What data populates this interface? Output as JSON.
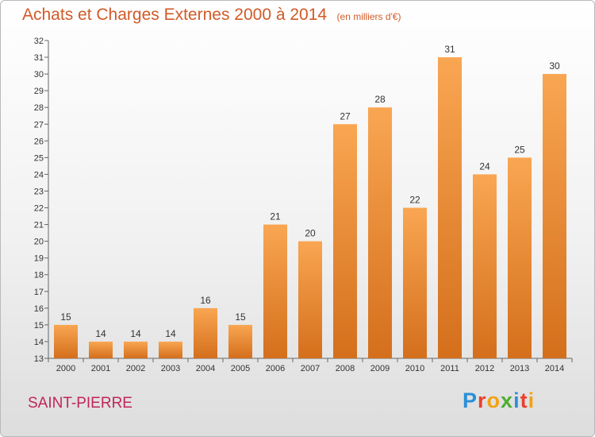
{
  "title": "Achats et Charges Externes 2000 à 2014",
  "unit": "(en milliers d'€)",
  "commune": "SAINT-PIERRE",
  "logo": [
    "P",
    "r",
    "o",
    "x",
    "i",
    "t",
    "i"
  ],
  "logo_colors": [
    "#2a8fd8",
    "#e8412d",
    "#f2a213",
    "#4caf2f",
    "#2a8fd8",
    "#e8412d",
    "#f2a213"
  ],
  "colors": {
    "bar_top": "#f9a652",
    "bar_bottom": "#d46f1c",
    "title": "#d15a28",
    "commune": "#c0255a"
  },
  "chart_data": {
    "type": "bar",
    "title": "Achats et Charges Externes 2000 à 2014",
    "subtitle": "(en milliers d'€)",
    "categories": [
      "2000",
      "2001",
      "2002",
      "2003",
      "2004",
      "2005",
      "2006",
      "2007",
      "2008",
      "2009",
      "2010",
      "2011",
      "2012",
      "2013",
      "2014"
    ],
    "values": [
      15,
      14,
      14,
      14,
      16,
      15,
      21,
      20,
      27,
      28,
      22,
      31,
      24,
      25,
      30
    ],
    "ylim": [
      13,
      32
    ],
    "yticks": [
      13,
      14,
      15,
      16,
      17,
      18,
      19,
      20,
      21,
      22,
      23,
      24,
      25,
      26,
      27,
      28,
      29,
      30,
      31,
      32
    ],
    "grid": false,
    "legend": "none"
  }
}
